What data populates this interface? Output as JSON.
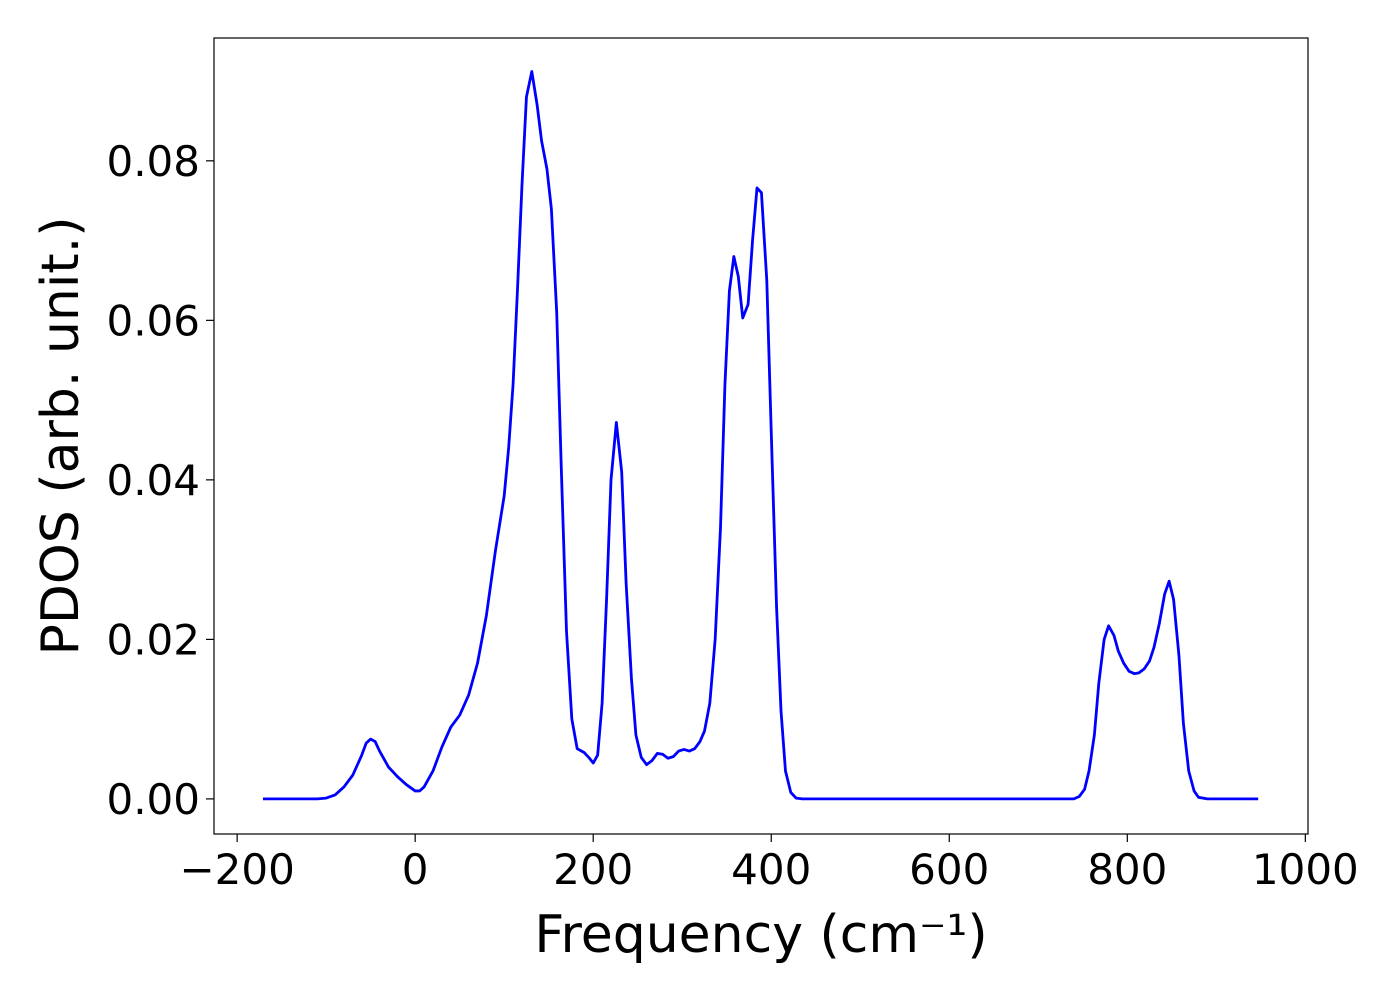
{
  "chart_data": {
    "type": "line",
    "xlabel": "Frequency (cm⁻¹)",
    "ylabel": "PDOS (arb. unit.)",
    "color": "#0000ff",
    "xlim": [
      -226,
      1003
    ],
    "ylim": [
      -0.0044,
      0.0954
    ],
    "xticks": [
      {
        "value": -200,
        "label": "−200"
      },
      0,
      200,
      400,
      600,
      800,
      1000
    ],
    "yticks": [
      {
        "value": 0,
        "label": "0.00"
      },
      {
        "value": 0.02,
        "label": "0.02"
      },
      {
        "value": 0.04,
        "label": "0.04"
      },
      {
        "value": 0.06,
        "label": "0.06"
      },
      {
        "value": 0.08,
        "label": "0.08"
      }
    ],
    "grid": false,
    "x": [
      -171,
      -140,
      -110,
      -100,
      -90,
      -80,
      -70,
      -60,
      -55,
      -50,
      -45,
      -40,
      -30,
      -20,
      -10,
      0,
      5,
      10,
      20,
      30,
      40,
      50,
      60,
      70,
      80,
      90,
      100,
      105,
      110,
      115,
      120,
      125,
      131,
      137,
      142,
      148,
      153,
      159,
      164,
      170,
      176,
      182,
      190,
      195,
      200,
      205,
      210,
      215,
      220,
      226,
      232,
      237,
      243,
      248,
      254,
      260,
      266,
      272,
      278,
      284,
      290,
      296,
      302,
      308,
      314,
      320,
      325,
      331,
      337,
      343,
      348,
      353,
      358,
      363,
      368,
      374,
      379,
      384,
      389,
      395,
      400,
      406,
      411,
      416,
      422,
      428,
      435,
      600,
      740,
      746,
      752,
      757,
      763,
      768,
      774,
      779,
      785,
      790,
      796,
      802,
      808,
      813,
      819,
      825,
      830,
      836,
      842,
      847,
      852,
      858,
      863,
      869,
      875,
      880,
      890,
      947
    ],
    "values": [
      0,
      0,
      0,
      0.0001,
      0.0005,
      0.0015,
      0.003,
      0.0055,
      0.007,
      0.0075,
      0.0072,
      0.006,
      0.004,
      0.0028,
      0.0018,
      0.001,
      0.001,
      0.0015,
      0.0035,
      0.0065,
      0.009,
      0.0105,
      0.013,
      0.017,
      0.023,
      0.031,
      0.038,
      0.044,
      0.052,
      0.064,
      0.077,
      0.088,
      0.0912,
      0.087,
      0.0825,
      0.079,
      0.074,
      0.061,
      0.042,
      0.021,
      0.01,
      0.0063,
      0.0058,
      0.0052,
      0.0045,
      0.0055,
      0.012,
      0.025,
      0.04,
      0.0472,
      0.041,
      0.027,
      0.015,
      0.008,
      0.0052,
      0.0043,
      0.0048,
      0.0057,
      0.0056,
      0.0051,
      0.0053,
      0.006,
      0.0062,
      0.006,
      0.0063,
      0.0072,
      0.0085,
      0.012,
      0.02,
      0.034,
      0.052,
      0.0637,
      0.068,
      0.0655,
      0.0603,
      0.062,
      0.07,
      0.0766,
      0.076,
      0.065,
      0.046,
      0.024,
      0.011,
      0.0035,
      0.0008,
      0.0001,
      0,
      0,
      0,
      0.0003,
      0.0012,
      0.0035,
      0.008,
      0.0145,
      0.02,
      0.0217,
      0.0205,
      0.0185,
      0.017,
      0.016,
      0.0157,
      0.0158,
      0.0163,
      0.0173,
      0.019,
      0.022,
      0.0257,
      0.0273,
      0.025,
      0.018,
      0.0095,
      0.0035,
      0.001,
      0.0002,
      0,
      0
    ]
  }
}
